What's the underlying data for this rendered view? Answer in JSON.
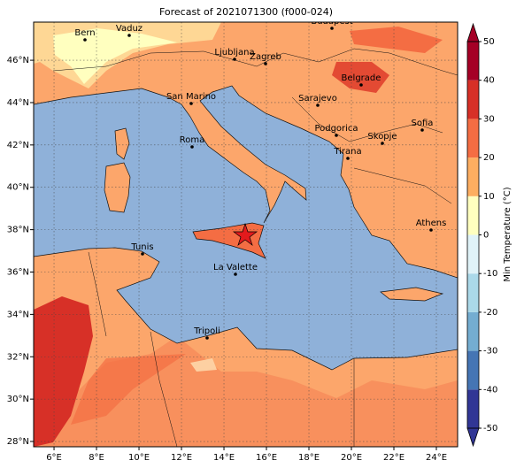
{
  "title": "Forecast of 2021071300 (f000-024)",
  "xlim": [
    5.04,
    25
  ],
  "ylim": [
    27.75,
    47.8
  ],
  "xticks": [
    {
      "value": 6,
      "label": "6°E"
    },
    {
      "value": 8,
      "label": "8°E"
    },
    {
      "value": 10,
      "label": "10°E"
    },
    {
      "value": 12,
      "label": "12°E"
    },
    {
      "value": 14,
      "label": "14°E"
    },
    {
      "value": 16,
      "label": "16°E"
    },
    {
      "value": 18,
      "label": "18°E"
    },
    {
      "value": 20,
      "label": "20°E"
    },
    {
      "value": 22,
      "label": "22°E"
    },
    {
      "value": 24,
      "label": "24°E"
    }
  ],
  "yticks": [
    {
      "value": 28,
      "label": "28°N"
    },
    {
      "value": 30,
      "label": "30°N"
    },
    {
      "value": 32,
      "label": "32°N"
    },
    {
      "value": 34,
      "label": "34°N"
    },
    {
      "value": 36,
      "label": "36°N"
    },
    {
      "value": 38,
      "label": "38°N"
    },
    {
      "value": 40,
      "label": "40°N"
    },
    {
      "value": 42,
      "label": "42°N"
    },
    {
      "value": 44,
      "label": "44°N"
    },
    {
      "value": 46,
      "label": "46°N"
    }
  ],
  "grid": true,
  "cities": [
    "Bern",
    "Vaduz",
    "Budapest",
    "Ljubljana",
    "Zagreb",
    "Belgrade",
    "San Marino",
    "Sarajevo",
    "Roma",
    "Podgorica",
    "Skopje",
    "Sofia",
    "Tirana",
    "Athens",
    "Tunis",
    "La Valette",
    "Tripoli"
  ],
  "colorbar": {
    "label": "Min Temperature (°C)",
    "lim": [
      -50,
      50
    ],
    "ticks": [
      -50,
      -40,
      -30,
      -20,
      -10,
      0,
      10,
      20,
      30,
      40,
      50
    ],
    "colors": [
      "#313695",
      "#4575b4",
      "#74add1",
      "#abd9e9",
      "#e0f3f8",
      "#ffffbf",
      "#fdae61",
      "#f46d43",
      "#d73027",
      "#a50026"
    ]
  }
}
